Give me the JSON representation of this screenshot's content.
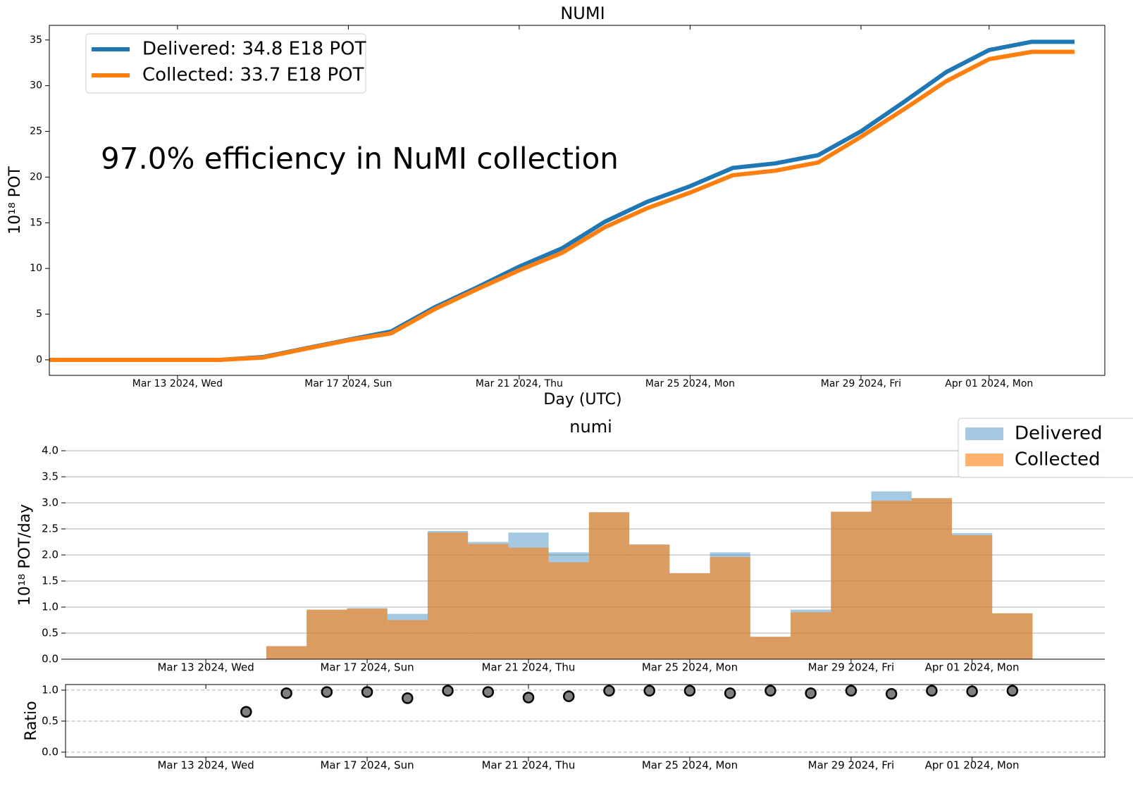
{
  "chart_data": [
    {
      "type": "line",
      "title": "NUMI",
      "xlabel": "Day (UTC)",
      "ylabel": "10¹⁸ POT",
      "annotation": "97.0% efficiency in NuMI collection",
      "x": [
        "2024-03-10",
        "2024-03-11",
        "2024-03-12",
        "2024-03-13",
        "2024-03-14",
        "2024-03-15",
        "2024-03-16",
        "2024-03-17",
        "2024-03-18",
        "2024-03-19",
        "2024-03-20",
        "2024-03-21",
        "2024-03-22",
        "2024-03-23",
        "2024-03-24",
        "2024-03-25",
        "2024-03-26",
        "2024-03-27",
        "2024-03-28",
        "2024-03-29",
        "2024-03-30",
        "2024-03-31",
        "2024-04-01",
        "2024-04-02",
        "2024-04-03"
      ],
      "series": [
        {
          "name": "Delivered: 34.8 E18 POT",
          "color": "#1f77b4",
          "values": [
            0,
            0,
            0,
            0,
            0,
            0.3,
            1.25,
            2.2,
            3.1,
            5.7,
            7.9,
            10.2,
            12.2,
            15.1,
            17.3,
            19.0,
            21.0,
            21.5,
            22.4,
            25.0,
            28.2,
            31.5,
            33.9,
            34.8,
            34.8
          ]
        },
        {
          "name": "Collected: 33.7 E18 POT",
          "color": "#ff7f0e",
          "values": [
            0,
            0,
            0,
            0,
            0,
            0.25,
            1.2,
            2.15,
            2.9,
            5.5,
            7.7,
            9.8,
            11.7,
            14.5,
            16.6,
            18.3,
            20.2,
            20.7,
            21.6,
            24.4,
            27.4,
            30.5,
            32.9,
            33.7,
            33.7
          ]
        }
      ],
      "xlim": [
        "2024-03-10T00:00:00Z",
        "2024-04-03T17:00:00Z"
      ],
      "xticks": [
        {
          "value": "2024-03-13",
          "label": "Mar 13 2024, Wed"
        },
        {
          "value": "2024-03-17",
          "label": "Mar 17 2024, Sun"
        },
        {
          "value": "2024-03-21",
          "label": "Mar 21 2024, Thu"
        },
        {
          "value": "2024-03-25",
          "label": "Mar 25 2024, Mon"
        },
        {
          "value": "2024-03-29",
          "label": "Mar 29 2024, Fri"
        },
        {
          "value": "2024-04-01",
          "label": "Apr 01 2024, Mon"
        }
      ],
      "ylim": [
        -1.7,
        36.6
      ],
      "yticks": [
        0,
        5,
        10,
        15,
        20,
        25,
        30,
        35
      ],
      "grid": false,
      "legend": "upper left"
    },
    {
      "type": "bar",
      "title": "numi",
      "ylabel": "10¹⁸ POT/day",
      "x": [
        "2024-03-15",
        "2024-03-16",
        "2024-03-17",
        "2024-03-18",
        "2024-03-19",
        "2024-03-20",
        "2024-03-21",
        "2024-03-22",
        "2024-03-23",
        "2024-03-24",
        "2024-03-25",
        "2024-03-26",
        "2024-03-27",
        "2024-03-28",
        "2024-03-29",
        "2024-03-30",
        "2024-03-31",
        "2024-04-01",
        "2024-04-02"
      ],
      "series": [
        {
          "name": "Delivered",
          "color": "#1f77b4",
          "alpha": 0.4,
          "values": [
            0.25,
            0.95,
            0.98,
            0.87,
            2.46,
            2.25,
            2.43,
            2.05,
            2.82,
            2.2,
            1.65,
            2.05,
            0.43,
            0.95,
            2.83,
            3.22,
            3.09,
            2.42,
            0.88
          ]
        },
        {
          "name": "Collected",
          "color": "#ff7f0e",
          "alpha": 0.6,
          "values": [
            0.25,
            0.95,
            0.97,
            0.75,
            2.43,
            2.21,
            2.14,
            1.86,
            2.82,
            2.2,
            1.65,
            1.96,
            0.43,
            0.9,
            2.83,
            3.04,
            3.09,
            2.38,
            0.88
          ]
        }
      ],
      "xlim": [
        "2024-03-09T12:30:00Z",
        "2024-04-04T07:00:00Z"
      ],
      "xticks": [
        {
          "value": "2024-03-13",
          "label": "Mar 13 2024, Wed"
        },
        {
          "value": "2024-03-17",
          "label": "Mar 17 2024, Sun"
        },
        {
          "value": "2024-03-21",
          "label": "Mar 21 2024, Thu"
        },
        {
          "value": "2024-03-25",
          "label": "Mar 25 2024, Mon"
        },
        {
          "value": "2024-03-29",
          "label": "Mar 29 2024, Fri"
        },
        {
          "value": "2024-04-01",
          "label": "Apr 01 2024, Mon"
        }
      ],
      "ylim": [
        0,
        4.0
      ],
      "yticks": [
        {
          "value": 0,
          "label": "0.0"
        },
        {
          "value": 0.5,
          "label": "0.5"
        },
        {
          "value": 1,
          "label": "1.0"
        },
        {
          "value": 1.5,
          "label": "1.5"
        },
        {
          "value": 2,
          "label": "2.0"
        },
        {
          "value": 2.5,
          "label": "2.5"
        },
        {
          "value": 3,
          "label": "3.0"
        },
        {
          "value": 3.5,
          "label": "3.5"
        },
        {
          "value": 4,
          "label": "4.0"
        }
      ],
      "grid": true,
      "legend": "upper right"
    },
    {
      "type": "scatter",
      "ylabel": "Ratio",
      "x": [
        "2024-03-14",
        "2024-03-15",
        "2024-03-16",
        "2024-03-17",
        "2024-03-18",
        "2024-03-19",
        "2024-03-20",
        "2024-03-21",
        "2024-03-22",
        "2024-03-23",
        "2024-03-24",
        "2024-03-25",
        "2024-03-26",
        "2024-03-27",
        "2024-03-28",
        "2024-03-29",
        "2024-03-30",
        "2024-03-31",
        "2024-04-01",
        "2024-04-02"
      ],
      "values": [
        0.65,
        0.95,
        0.97,
        0.97,
        0.87,
        0.99,
        0.97,
        0.88,
        0.9,
        0.99,
        0.99,
        0.99,
        0.95,
        0.99,
        0.95,
        0.99,
        0.94,
        0.99,
        0.98,
        0.99
      ],
      "color": "#808080",
      "xlim": [
        "2024-03-09T12:30:00Z",
        "2024-04-04T07:00:00Z"
      ],
      "xticks": [
        {
          "value": "2024-03-13",
          "label": "Mar 13 2024, Wed"
        },
        {
          "value": "2024-03-17",
          "label": "Mar 17 2024, Sun"
        },
        {
          "value": "2024-03-21",
          "label": "Mar 21 2024, Thu"
        },
        {
          "value": "2024-03-25",
          "label": "Mar 25 2024, Mon"
        },
        {
          "value": "2024-03-29",
          "label": "Mar 29 2024, Fri"
        },
        {
          "value": "2024-04-01",
          "label": "Apr 01 2024, Mon"
        }
      ],
      "ylim": [
        -0.08,
        1.09
      ],
      "yticks": [
        {
          "value": 0,
          "label": "0.0"
        },
        {
          "value": 0.5,
          "label": "0.5"
        },
        {
          "value": 1,
          "label": "1.0"
        }
      ],
      "grid": true,
      "grid_style": "dashed"
    }
  ]
}
